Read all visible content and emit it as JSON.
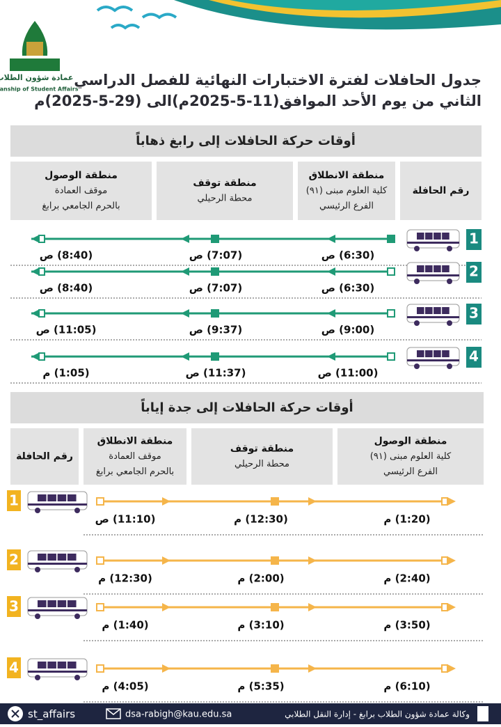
{
  "header": {
    "logo_text": "عمادة شؤون الطلاب",
    "logo_subtitle": "Deanship of Student Affairs",
    "title_lines": [
      "جدول الحافلات لفترة الاختبارات النهائية للفصل الدراسي",
      "الثاني من يوم الأحد الموافق(11-5-2025م)الى (29-5-2025)م"
    ]
  },
  "outbound": {
    "title": "أوقات حركة الحافلات  إلى رابغ ذهاباً",
    "headers": {
      "bus": [
        "رقم الحافلة"
      ],
      "start": [
        "منطقة الانطلاق",
        "كلية العلوم مبنى (٩١)",
        "الفرع الرئيسي"
      ],
      "stop": [
        "منطقة توقف",
        "محطة الرحيلي"
      ],
      "arrival": [
        "منطقة الوصول",
        "موقف العمادة",
        "بالحرم الجامعي برابغ"
      ]
    },
    "rows": [
      {
        "number": "1",
        "times": [
          "(6:30) ص",
          "(7:07) ص",
          "(8:40) ص"
        ]
      },
      {
        "number": "2",
        "times": [
          "(6:30) ص",
          "(7:07) ص",
          "(8:40) ص"
        ]
      },
      {
        "number": "3",
        "times": [
          "(9:00) ص",
          "(9:37) ص",
          "(11:05) ص"
        ]
      },
      {
        "number": "4",
        "times": [
          "(11:00) ص",
          "(11:37) ص",
          "(1:05) م"
        ]
      }
    ]
  },
  "return": {
    "title": "أوقات حركة الحافلات إلى جدة إياباً",
    "headers": {
      "bus": [
        "رقم الحافلة"
      ],
      "start": [
        "منطقة الانطلاق",
        "موقف العمادة",
        "بالحرم الجامعي برابغ"
      ],
      "stop": [
        "منطقة توقف",
        "محطة الرحيلي"
      ],
      "arrival": [
        "منطقة الوصول",
        "كلية العلوم مبنى (٩١)",
        "الفرع الرئيسي"
      ]
    },
    "rows": [
      {
        "number": "1",
        "times": [
          "(11:10) ص",
          "(12:30) م",
          "(1:20) م"
        ]
      },
      {
        "number": "2",
        "times": [
          "(12:30) م",
          "(2:00) م",
          "(2:40) م"
        ]
      },
      {
        "number": "3",
        "times": [
          "(1:40) م",
          "(3:10) م",
          "(3:50) م"
        ]
      },
      {
        "number": "4",
        "times": [
          "(4:05) م",
          "(5:35) م",
          "(6:10) م"
        ]
      }
    ]
  },
  "footer": {
    "social": "st_affairs",
    "email": "dsa-rabigh@kau.edu.sa",
    "agency": "وكالة عمادة شؤون الطلاب برابغ - إدارة النقل الطلابي"
  }
}
